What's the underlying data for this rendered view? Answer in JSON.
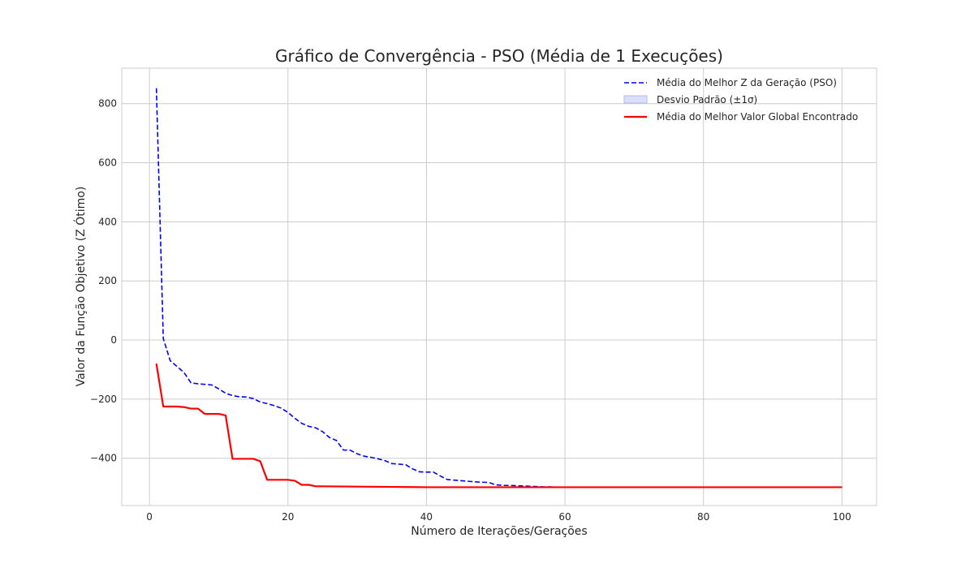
{
  "chart_data": {
    "type": "line",
    "title": "Gráfico de Convergência - PSO (Média de 1 Execuções)",
    "xlabel": "Número de Iterações/Gerações",
    "ylabel": "Valor da Função Objetivo (Z Ótimo)",
    "xlim": [
      -4,
      105
    ],
    "ylim": [
      -560,
      920
    ],
    "xticks": [
      0,
      20,
      40,
      60,
      80,
      100
    ],
    "yticks": [
      -400,
      -200,
      0,
      200,
      400,
      600,
      800
    ],
    "grid": true,
    "legend_position": "top-right",
    "series": [
      {
        "name": "Média do Melhor Z da Geração (PSO)",
        "style": "dashed",
        "color": "#0000ff",
        "x": [
          1,
          2,
          3,
          4,
          5,
          6,
          7,
          8,
          9,
          10,
          11,
          12,
          13,
          14,
          15,
          16,
          17,
          18,
          19,
          20,
          21,
          22,
          23,
          24,
          25,
          26,
          27,
          28,
          29,
          30,
          31,
          32,
          33,
          34,
          35,
          36,
          37,
          38,
          39,
          40,
          41,
          42,
          43,
          44,
          45,
          46,
          47,
          48,
          49,
          50,
          51,
          52,
          53,
          54,
          55,
          56,
          57,
          58,
          59,
          60,
          70,
          80,
          90,
          100
        ],
        "values": [
          852,
          5,
          -70,
          -90,
          -110,
          -145,
          -148,
          -150,
          -152,
          -165,
          -180,
          -188,
          -192,
          -193,
          -198,
          -210,
          -215,
          -222,
          -230,
          -245,
          -265,
          -282,
          -292,
          -297,
          -310,
          -330,
          -340,
          -372,
          -373,
          -385,
          -393,
          -397,
          -402,
          -408,
          -418,
          -420,
          -422,
          -436,
          -446,
          -447,
          -447,
          -460,
          -472,
          -474,
          -476,
          -478,
          -480,
          -481,
          -482,
          -490,
          -492,
          -492,
          -493,
          -494,
          -495,
          -496,
          -497,
          -497,
          -498,
          -498,
          -498,
          -498,
          -498,
          -498
        ]
      },
      {
        "name": "Desvio Padrão (±1σ)",
        "style": "band",
        "color": "#b0b8f0",
        "values": []
      },
      {
        "name": "Média do Melhor Valor Global Encontrado",
        "style": "solid",
        "color": "#ff0000",
        "x": [
          1,
          2,
          3,
          4,
          5,
          6,
          7,
          8,
          9,
          10,
          11,
          12,
          13,
          14,
          15,
          16,
          17,
          18,
          19,
          20,
          21,
          22,
          23,
          24,
          25,
          30,
          35,
          40,
          50,
          60,
          70,
          80,
          90,
          100
        ],
        "values": [
          -80,
          -225,
          -225,
          -225,
          -227,
          -232,
          -232,
          -250,
          -250,
          -250,
          -255,
          -402,
          -402,
          -402,
          -402,
          -410,
          -473,
          -473,
          -473,
          -473,
          -476,
          -490,
          -490,
          -495,
          -495,
          -496,
          -497,
          -498,
          -498,
          -498,
          -498,
          -498,
          -498,
          -498
        ]
      }
    ]
  }
}
